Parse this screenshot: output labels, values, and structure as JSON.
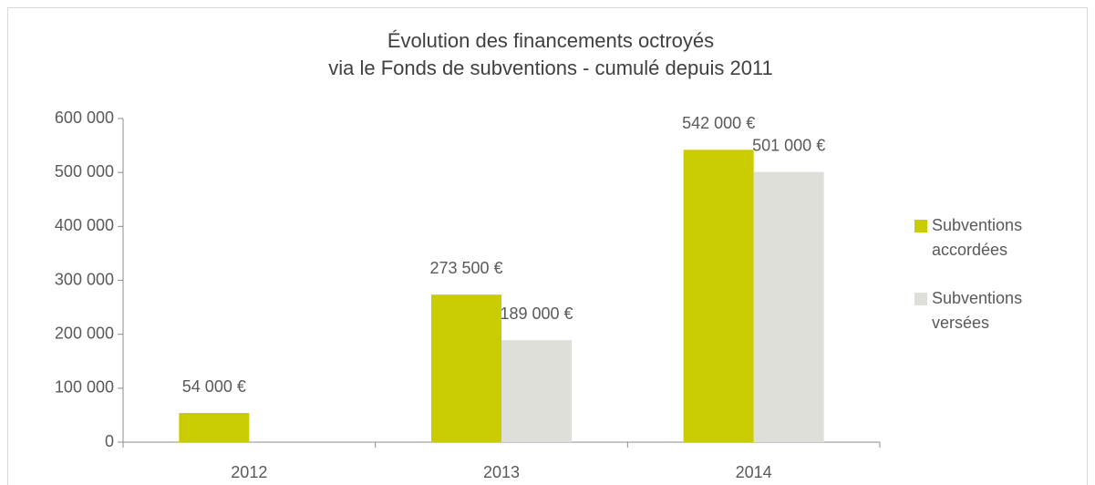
{
  "chart_data": {
    "type": "bar",
    "title": [
      "Évolution des financements octroyés",
      "via le Fonds de subventions - cumulé depuis 2011"
    ],
    "categories": [
      "2012",
      "2013",
      "2014"
    ],
    "series": [
      {
        "name": "Subventions accordées",
        "color": "#c9cc00",
        "values": [
          54000,
          273500,
          542000
        ],
        "value_labels": [
          "54 000 €",
          "273 500 €",
          "542 000 €"
        ]
      },
      {
        "name": "Subventions versées",
        "color": "#dfdfda",
        "values": [
          null,
          189000,
          501000
        ],
        "value_labels": [
          null,
          "189 000 €",
          "501 000 €"
        ]
      }
    ],
    "ylim": [
      0,
      600000
    ],
    "yticks": [
      0,
      {
        "value": 100000,
        "label": "100 000"
      },
      {
        "value": 200000,
        "label": "200 000"
      },
      {
        "value": 300000,
        "label": "300 000"
      },
      {
        "value": 400000,
        "label": "400 000"
      },
      {
        "value": 500000,
        "label": "500 000"
      },
      {
        "value": 600000,
        "label": "600 000"
      }
    ],
    "grid": false,
    "legend": "right"
  }
}
